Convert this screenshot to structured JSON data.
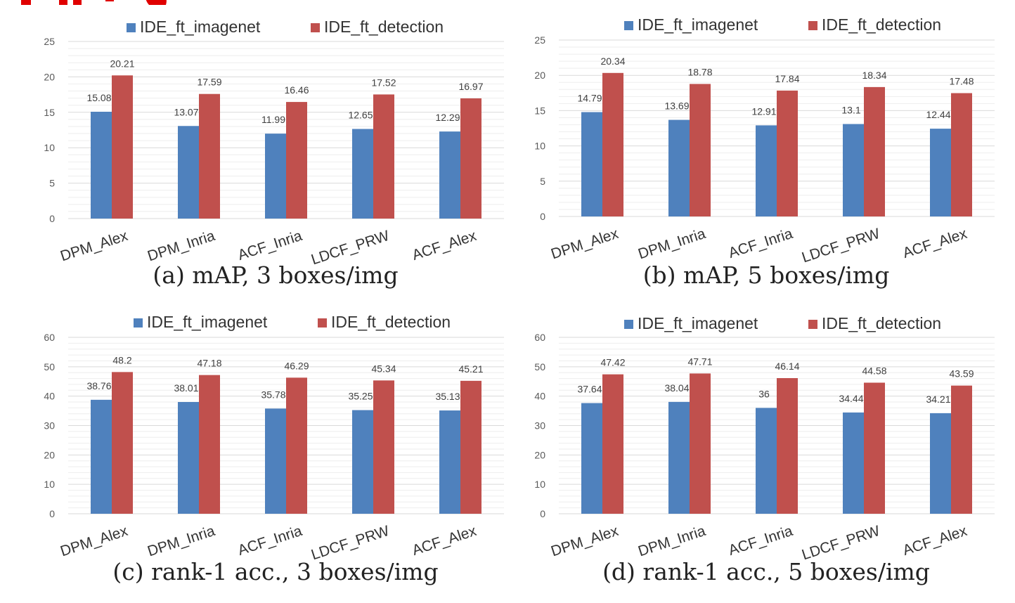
{
  "colors": {
    "series_1": "#4f81bd",
    "series_2": "#c0504d",
    "gridline": "#d9d9d9",
    "overflow_text": "#e00000"
  },
  "chart_data": [
    {
      "type": "bar",
      "caption": "(a) mAP, 3 boxes/img",
      "categories": [
        "DPM_Alex",
        "DPM_Inria",
        "ACF_Inria",
        "LDCF_PRW",
        "ACF_Alex"
      ],
      "series": [
        {
          "name": "IDE_ft_imagenet",
          "values": [
            15.08,
            13.07,
            11.99,
            12.65,
            12.29
          ]
        },
        {
          "name": "IDE_ft_detection",
          "values": [
            20.21,
            17.59,
            16.46,
            17.52,
            16.97
          ]
        }
      ],
      "ylim": [
        0,
        25
      ],
      "yticks": [
        0,
        5,
        10,
        15,
        20,
        25
      ],
      "legend": "top",
      "grid": true
    },
    {
      "type": "bar",
      "caption": "(b) mAP, 5 boxes/img",
      "categories": [
        "DPM_Alex",
        "DPM_Inria",
        "ACF_Inria",
        "LDCF_PRW",
        "ACF_Alex"
      ],
      "series": [
        {
          "name": "IDE_ft_imagenet",
          "values": [
            14.79,
            13.69,
            12.91,
            13.1,
            12.44
          ]
        },
        {
          "name": "IDE_ft_detection",
          "values": [
            20.34,
            18.78,
            17.84,
            18.34,
            17.48
          ]
        }
      ],
      "ylim": [
        0,
        25
      ],
      "yticks": [
        0,
        5,
        10,
        15,
        20,
        25
      ],
      "legend": "top",
      "grid": true
    },
    {
      "type": "bar",
      "caption": "(c) rank-1 acc., 3 boxes/img",
      "categories": [
        "DPM_Alex",
        "DPM_Inria",
        "ACF_Inria",
        "LDCF_PRW",
        "ACF_Alex"
      ],
      "series": [
        {
          "name": "IDE_ft_imagenet",
          "values": [
            38.76,
            38.01,
            35.78,
            35.25,
            35.13
          ]
        },
        {
          "name": "IDE_ft_detection",
          "values": [
            48.2,
            47.18,
            46.29,
            45.34,
            45.21
          ]
        }
      ],
      "ylim": [
        0,
        60
      ],
      "yticks": [
        0,
        10,
        20,
        30,
        40,
        50,
        60
      ],
      "legend": "top",
      "grid": true
    },
    {
      "type": "bar",
      "caption": "(d) rank-1 acc., 5 boxes/img",
      "categories": [
        "DPM_Alex",
        "DPM_Inria",
        "ACF_Inria",
        "LDCF_PRW",
        "ACF_Alex"
      ],
      "series": [
        {
          "name": "IDE_ft_imagenet",
          "values": [
            37.64,
            38.04,
            36,
            34.44,
            34.21
          ]
        },
        {
          "name": "IDE_ft_detection",
          "values": [
            47.42,
            47.71,
            46.14,
            44.58,
            43.59
          ]
        }
      ],
      "ylim": [
        0,
        60
      ],
      "yticks": [
        0,
        10,
        20,
        30,
        40,
        50,
        60
      ],
      "legend": "top",
      "grid": true
    }
  ]
}
